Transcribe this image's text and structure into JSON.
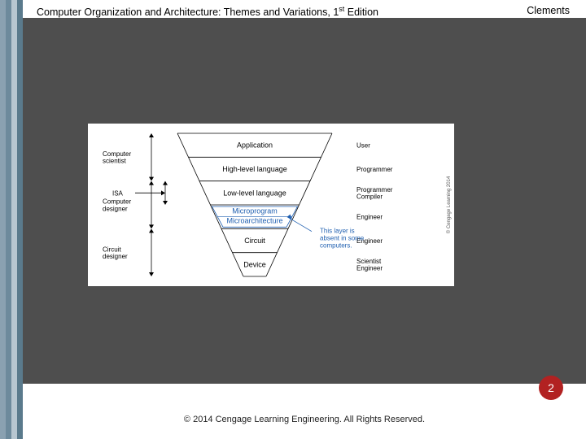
{
  "header": {
    "title_pre": "Computer Organization and Architecture: Themes and Variations, 1",
    "title_sup": "st",
    "title_post": " Edition",
    "author": "Clements"
  },
  "sidebar_colors": [
    "#8aa1b1",
    "#6d8a9c",
    "#b7c6d0",
    "#5a7a8c"
  ],
  "diagram": {
    "bg": "#ffffff",
    "line_color": "#000000",
    "text_color": "#000000",
    "blue": "#1f5fb0",
    "font_size_main": 9,
    "font_size_side": 8,
    "layers": [
      {
        "label": "Application",
        "right": "User"
      },
      {
        "label": "High-level language",
        "right": "Programmer"
      },
      {
        "label": "Low-level language",
        "right": "Programmer\nCompiler"
      },
      {
        "label": "Microprogram",
        "label2": "Microarchitecture",
        "right": "Engineer"
      },
      {
        "label": "Circuit",
        "right": "Engineer"
      },
      {
        "label": "Device",
        "right": "Scientist\nEngineer"
      }
    ],
    "left_groups": [
      {
        "label": "Computer\nscientist",
        "from": 0,
        "to": 2
      },
      {
        "label": "ISA",
        "from": 2,
        "to": 3,
        "single": true
      },
      {
        "label": "Computer\ndesigner",
        "from": 2,
        "to": 4
      },
      {
        "label": "Circuit\ndesigner",
        "from": 4,
        "to": 6
      }
    ],
    "annotation": {
      "text": "This layer is\nabsent in some\ncomputers.",
      "target_layer": 3
    },
    "vertical_caption": "© Cengage Learning 2014"
  },
  "page_number": "2",
  "badge_color": "#b22222",
  "copyright": "© 2014 Cengage Learning Engineering. All Rights Reserved."
}
